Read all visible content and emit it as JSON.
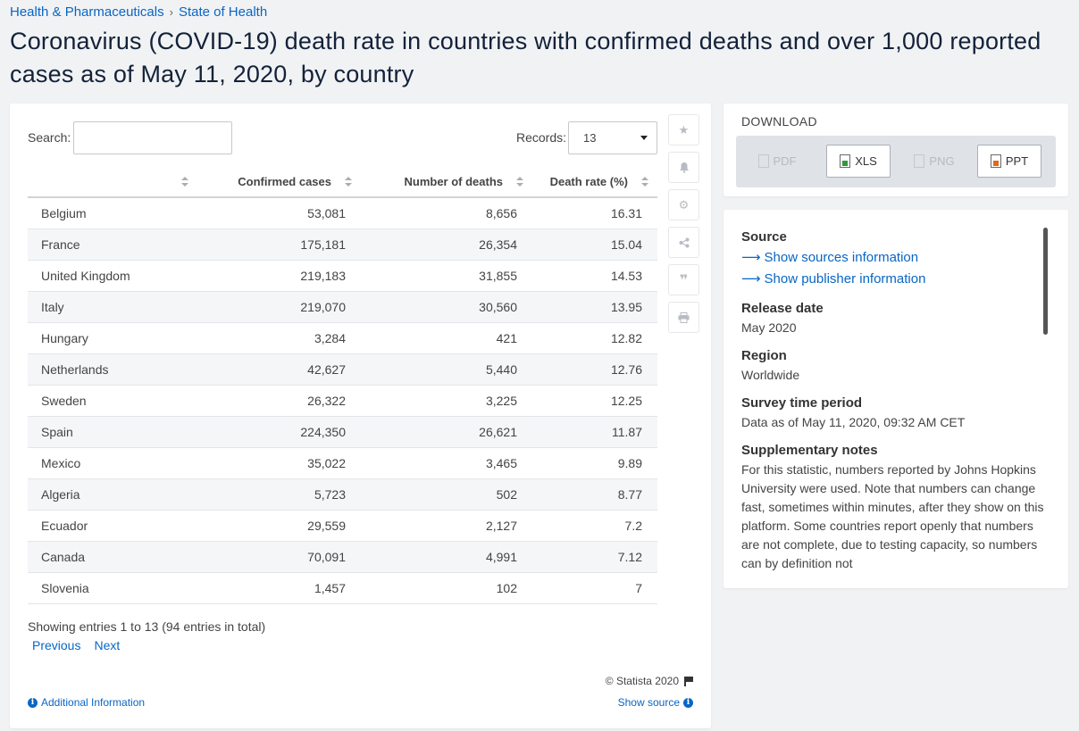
{
  "breadcrumb": {
    "item1": "Health & Pharmaceuticals",
    "sep": "›",
    "item2": "State of Health"
  },
  "title": "Coronavirus (COVID-19) death rate in countries with confirmed deaths and over 1,000 reported cases as of May 11, 2020, by country",
  "search": {
    "label": "Search:",
    "value": ""
  },
  "records": {
    "label": "Records:",
    "selected": "13"
  },
  "table": {
    "headers": [
      "",
      "Confirmed cases",
      "Number of deaths",
      "Death rate (%)"
    ],
    "rows": [
      [
        "Belgium",
        "53,081",
        "8,656",
        "16.31"
      ],
      [
        "France",
        "175,181",
        "26,354",
        "15.04"
      ],
      [
        "United Kingdom",
        "219,183",
        "31,855",
        "14.53"
      ],
      [
        "Italy",
        "219,070",
        "30,560",
        "13.95"
      ],
      [
        "Hungary",
        "3,284",
        "421",
        "12.82"
      ],
      [
        "Netherlands",
        "42,627",
        "5,440",
        "12.76"
      ],
      [
        "Sweden",
        "26,322",
        "3,225",
        "12.25"
      ],
      [
        "Spain",
        "224,350",
        "26,621",
        "11.87"
      ],
      [
        "Mexico",
        "35,022",
        "3,465",
        "9.89"
      ],
      [
        "Algeria",
        "5,723",
        "502",
        "8.77"
      ],
      [
        "Ecuador",
        "29,559",
        "2,127",
        "7.2"
      ],
      [
        "Canada",
        "70,091",
        "4,991",
        "7.12"
      ],
      [
        "Slovenia",
        "1,457",
        "102",
        "7"
      ]
    ]
  },
  "entries_info": "Showing entries 1 to 13 (94 entries in total)",
  "pager": {
    "previous": "Previous",
    "next": "Next"
  },
  "footer": {
    "copyright": "© Statista 2020",
    "additional_info": "Additional Information",
    "show_source": "Show source"
  },
  "tools": [
    "star-icon",
    "bell-icon",
    "gear-icon",
    "share-icon",
    "quote-icon",
    "print-icon"
  ],
  "download": {
    "title": "DOWNLOAD",
    "buttons": [
      {
        "label": "PDF",
        "enabled": false
      },
      {
        "label": "XLS",
        "enabled": true
      },
      {
        "label": "PNG",
        "enabled": false
      },
      {
        "label": "PPT",
        "enabled": true
      }
    ]
  },
  "info": {
    "source_heading": "Source",
    "source_link1": "Show sources information",
    "source_link2": "Show publisher information",
    "release_heading": "Release date",
    "release_value": "May 2020",
    "region_heading": "Region",
    "region_value": "Worldwide",
    "survey_heading": "Survey time period",
    "survey_value": "Data as of May 11, 2020, 09:32 AM CET",
    "notes_heading": "Supplementary notes",
    "notes_value": "For this statistic, numbers reported by Johns Hopkins University were used. Note that numbers can change fast, sometimes within minutes, after they show on this platform. Some countries report openly that numbers are not complete, due to testing capacity, so numbers can by definition not"
  },
  "colors": {
    "accent": "#0866c6",
    "title": "#13223a",
    "background": "#f1f2f4"
  }
}
